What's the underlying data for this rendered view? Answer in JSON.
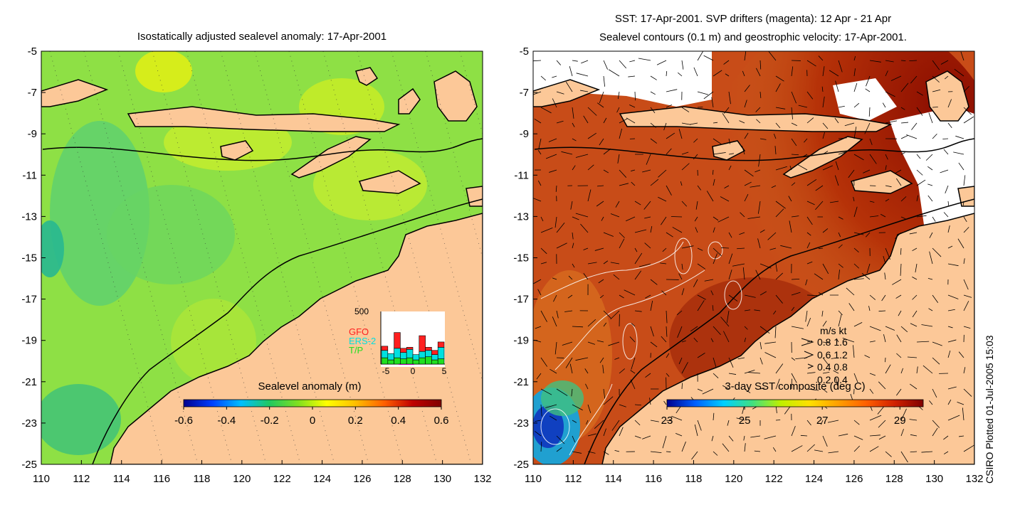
{
  "left_panel": {
    "title": "Isostatically adjusted sealevel anomaly: 17-Apr-2001",
    "colorbar_label": "Sealevel anomaly (m)",
    "colorbar_ticks": [
      "-0.6",
      "-0.4",
      "-0.2",
      "0",
      "0.2",
      "0.4",
      "0.6"
    ],
    "colorbar_colors": [
      "#00008f",
      "#0040ff",
      "#00bfff",
      "#20c860",
      "#80e020",
      "#ffff00",
      "#ffbf00",
      "#ff6000",
      "#c00000",
      "#800000"
    ],
    "inset": {
      "ymax_label": "500",
      "legend": [
        {
          "label": "GFO",
          "color": "#ff2020"
        },
        {
          "label": "ERS-2",
          "color": "#00e0e0"
        },
        {
          "label": "T/P",
          "color": "#20e020"
        }
      ],
      "x_ticks": [
        "-5",
        "0",
        "5"
      ],
      "day_counts": {
        "T/P": [
          60,
          40,
          60,
          50,
          60,
          40,
          60,
          70,
          40,
          50
        ],
        "ERS-2": [
          70,
          60,
          90,
          60,
          80,
          50,
          60,
          60,
          50,
          110
        ],
        "GFO": [
          40,
          0,
          150,
          40,
          20,
          0,
          150,
          30,
          40,
          50
        ]
      }
    }
  },
  "right_panel": {
    "title_line1": "SST: 17-Apr-2001. SVP drifters (magenta): 12 Apr - 21 Apr",
    "title_line2": "Sealevel contours (0.1 m) and geostrophic velocity: 17-Apr-2001.",
    "colorbar_label": "3-day SST composite (deg C)",
    "colorbar_ticks": [
      "23",
      "25",
      "27",
      "29"
    ],
    "colorbar_colors": [
      "#00008f",
      "#0060ff",
      "#00d0ff",
      "#40e080",
      "#c0f000",
      "#ffe000",
      "#ffa000",
      "#ff6000",
      "#d02000",
      "#800000"
    ],
    "velocity_legend": {
      "header": "m/s  kt",
      "rows": [
        "0.8  1.6",
        "0.6  1.2",
        "0.4  0.8",
        "0.2  0.4"
      ]
    }
  },
  "axes": {
    "lon_ticks": [
      "110",
      "112",
      "114",
      "116",
      "118",
      "120",
      "122",
      "124",
      "126",
      "128",
      "130",
      "132"
    ],
    "lat_ticks": [
      "-5",
      "-7",
      "-9",
      "-11",
      "-13",
      "-15",
      "-17",
      "-19",
      "-21",
      "-23",
      "-25"
    ],
    "lon_range": [
      110,
      132
    ],
    "lat_range": [
      -25,
      -5
    ]
  },
  "side_note": "CSIRO Plotted 01-Jul-2005 15:03",
  "colors": {
    "land": "#fcc898",
    "sla_bg": "#8ee045",
    "sst_bg": "#c84c18"
  }
}
